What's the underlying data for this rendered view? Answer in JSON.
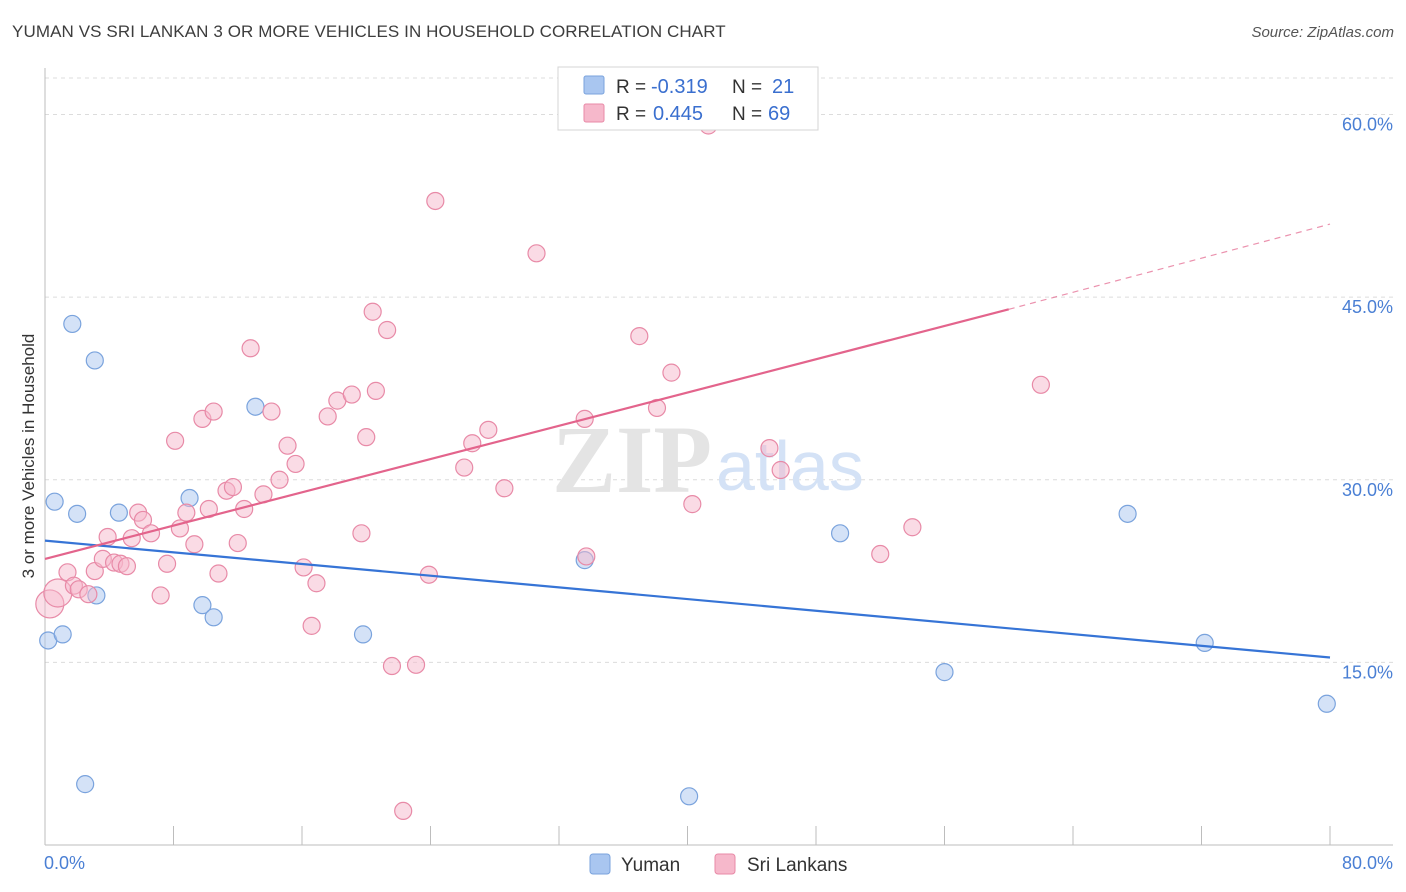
{
  "header": {
    "title": "YUMAN VS SRI LANKAN 3 OR MORE VEHICLES IN HOUSEHOLD CORRELATION CHART",
    "source": "Source: ZipAtlas.com"
  },
  "watermark": {
    "zip": "ZIP",
    "atlas": "atlas"
  },
  "stats_legend": [
    {
      "r_label": "R =",
      "r_value": "-0.319",
      "n_label": "N =",
      "n_value": "21",
      "color": "#a9c6f0"
    },
    {
      "r_label": "R =",
      "r_value": "0.445",
      "n_label": "N =",
      "n_value": "69",
      "color": "#f6b8cb"
    }
  ],
  "chart_data": {
    "type": "scatter",
    "title": "YUMAN VS SRI LANKAN 3 OR MORE VEHICLES IN HOUSEHOLD CORRELATION CHART",
    "xlabel": "",
    "ylabel": "3 or more Vehicles in Household",
    "xlim": [
      0,
      80
    ],
    "ylim": [
      0,
      63
    ],
    "x_tick_labels": [
      "0.0%",
      "80.0%"
    ],
    "y_ticks": [
      15,
      30,
      45,
      60
    ],
    "y_tick_labels": [
      "15.0%",
      "30.0%",
      "45.0%",
      "60.0%"
    ],
    "grid": true,
    "legend": [
      "Yuman",
      "Sri Lankans"
    ],
    "series": [
      {
        "name": "Yuman",
        "color": "#a9c6f0",
        "stroke": "#7aa3dd",
        "points": [
          [
            0.2,
            16.8
          ],
          [
            0.6,
            28.2
          ],
          [
            1.1,
            17.3
          ],
          [
            1.7,
            42.8
          ],
          [
            2.0,
            27.2
          ],
          [
            2.5,
            5.0
          ],
          [
            3.1,
            39.8
          ],
          [
            3.2,
            20.5
          ],
          [
            4.6,
            27.3
          ],
          [
            9.0,
            28.5
          ],
          [
            9.8,
            19.7
          ],
          [
            10.5,
            18.7
          ],
          [
            13.1,
            36.0
          ],
          [
            19.8,
            17.3
          ],
          [
            33.6,
            23.4
          ],
          [
            40.1,
            4.0
          ],
          [
            49.5,
            25.6
          ],
          [
            56.0,
            14.2
          ],
          [
            67.4,
            27.2
          ],
          [
            72.2,
            16.6
          ],
          [
            79.8,
            11.6
          ]
        ]
      },
      {
        "name": "Sri Lankans",
        "color": "#f6b8cb",
        "stroke": "#e88aa7",
        "points": [
          [
            0.3,
            19.8
          ],
          [
            0.8,
            20.7
          ],
          [
            1.4,
            22.4
          ],
          [
            1.8,
            21.3
          ],
          [
            2.1,
            21.0
          ],
          [
            2.7,
            20.6
          ],
          [
            3.1,
            22.5
          ],
          [
            3.6,
            23.5
          ],
          [
            3.9,
            25.3
          ],
          [
            4.3,
            23.2
          ],
          [
            4.7,
            23.1
          ],
          [
            5.1,
            22.9
          ],
          [
            5.4,
            25.2
          ],
          [
            5.8,
            27.3
          ],
          [
            6.1,
            26.7
          ],
          [
            6.6,
            25.6
          ],
          [
            7.2,
            20.5
          ],
          [
            7.6,
            23.1
          ],
          [
            8.1,
            33.2
          ],
          [
            8.4,
            26.0
          ],
          [
            8.8,
            27.3
          ],
          [
            9.3,
            24.7
          ],
          [
            9.8,
            35.0
          ],
          [
            10.2,
            27.6
          ],
          [
            10.5,
            35.6
          ],
          [
            10.8,
            22.3
          ],
          [
            11.3,
            29.1
          ],
          [
            11.7,
            29.4
          ],
          [
            12.0,
            24.8
          ],
          [
            12.4,
            27.6
          ],
          [
            12.8,
            40.8
          ],
          [
            13.6,
            28.8
          ],
          [
            14.1,
            35.6
          ],
          [
            14.6,
            30.0
          ],
          [
            15.1,
            32.8
          ],
          [
            15.6,
            31.3
          ],
          [
            16.1,
            22.8
          ],
          [
            16.6,
            18.0
          ],
          [
            16.9,
            21.5
          ],
          [
            17.6,
            35.2
          ],
          [
            18.2,
            36.5
          ],
          [
            19.1,
            37.0
          ],
          [
            19.7,
            25.6
          ],
          [
            20.0,
            33.5
          ],
          [
            20.4,
            43.8
          ],
          [
            20.6,
            37.3
          ],
          [
            21.3,
            42.3
          ],
          [
            21.6,
            14.7
          ],
          [
            22.3,
            2.8
          ],
          [
            23.1,
            14.8
          ],
          [
            23.9,
            22.2
          ],
          [
            24.3,
            52.9
          ],
          [
            26.1,
            31.0
          ],
          [
            26.6,
            33.0
          ],
          [
            27.6,
            34.1
          ],
          [
            28.6,
            29.3
          ],
          [
            30.6,
            48.6
          ],
          [
            33.6,
            35.0
          ],
          [
            33.7,
            23.7
          ],
          [
            37.0,
            41.8
          ],
          [
            38.1,
            35.9
          ],
          [
            39.0,
            38.8
          ],
          [
            40.3,
            28.0
          ],
          [
            41.3,
            59.1
          ],
          [
            45.1,
            32.6
          ],
          [
            45.8,
            30.8
          ],
          [
            52.0,
            23.9
          ],
          [
            54.0,
            26.1
          ],
          [
            62.0,
            37.8
          ]
        ]
      }
    ],
    "trend_lines": [
      {
        "series": "Yuman",
        "color": "#3674d6",
        "x_start": 0,
        "y_start": 25.0,
        "x_end": 80,
        "y_end": 15.4,
        "dashed_to": null
      },
      {
        "series": "Sri Lankans",
        "color": "#e3648c",
        "x_start": 0,
        "y_start": 23.5,
        "x_end": 60,
        "y_end": 44.0,
        "dashed_to": [
          80,
          51.0
        ]
      }
    ]
  }
}
